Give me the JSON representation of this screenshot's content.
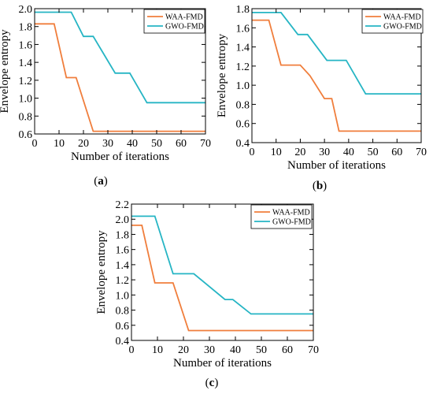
{
  "chart_data": [
    {
      "type": "line",
      "panel": "(a)",
      "panel_letter": "a",
      "xlabel": "Number of iterations",
      "ylabel": "Envelope entropy",
      "xlim": [
        0,
        70
      ],
      "ylim": [
        0.6,
        2.0
      ],
      "xticks": [
        0,
        10,
        20,
        30,
        40,
        50,
        60,
        70
      ],
      "yticks": [
        0.6,
        0.8,
        1.0,
        1.2,
        1.4,
        1.6,
        1.8,
        2.0
      ],
      "grid": false,
      "legend_position": "top-right",
      "series": [
        {
          "name": "WAA-FMD",
          "color": "#F07E3C",
          "x": [
            0,
            8,
            13,
            17,
            24,
            70
          ],
          "y": [
            1.83,
            1.83,
            1.23,
            1.23,
            0.63,
            0.63
          ]
        },
        {
          "name": "GWO-FMD",
          "color": "#26B5C4",
          "x": [
            0,
            15,
            20,
            24,
            33,
            39,
            46,
            70
          ],
          "y": [
            1.96,
            1.96,
            1.69,
            1.69,
            1.28,
            1.28,
            0.95,
            0.95
          ]
        }
      ]
    },
    {
      "type": "line",
      "panel": "(b)",
      "panel_letter": "b",
      "xlabel": "Number of iterations",
      "ylabel": "Envelope entropy",
      "xlim": [
        0,
        70
      ],
      "ylim": [
        0.4,
        1.8
      ],
      "xticks": [
        0,
        10,
        20,
        30,
        40,
        50,
        60,
        70
      ],
      "yticks": [
        0.4,
        0.6,
        0.8,
        1.0,
        1.2,
        1.4,
        1.6,
        1.8
      ],
      "grid": false,
      "legend_position": "top-right",
      "series": [
        {
          "name": "WAA-FMD",
          "color": "#F07E3C",
          "x": [
            0,
            7,
            12,
            20,
            24,
            30,
            33,
            36,
            70
          ],
          "y": [
            1.68,
            1.68,
            1.21,
            1.21,
            1.1,
            0.86,
            0.86,
            0.52,
            0.52
          ]
        },
        {
          "name": "GWO-FMD",
          "color": "#26B5C4",
          "x": [
            0,
            12,
            19,
            23,
            31,
            39,
            47,
            70
          ],
          "y": [
            1.76,
            1.76,
            1.53,
            1.53,
            1.26,
            1.26,
            0.91,
            0.91
          ]
        }
      ]
    },
    {
      "type": "line",
      "panel": "(c)",
      "panel_letter": "c",
      "xlabel": "Number of iterations",
      "ylabel": "Envelope entropy",
      "xlim": [
        0,
        70
      ],
      "ylim": [
        0.4,
        2.2
      ],
      "xticks": [
        0,
        10,
        20,
        30,
        40,
        50,
        60,
        70
      ],
      "yticks": [
        0.4,
        0.6,
        0.8,
        1.0,
        1.2,
        1.4,
        1.6,
        1.8,
        2.0,
        2.2
      ],
      "grid": false,
      "legend_position": "top-right",
      "series": [
        {
          "name": "WAA-FMD",
          "color": "#F07E3C",
          "x": [
            0,
            4,
            9,
            16,
            22,
            70
          ],
          "y": [
            1.92,
            1.92,
            1.16,
            1.16,
            0.53,
            0.53
          ]
        },
        {
          "name": "GWO-FMD",
          "color": "#26B5C4",
          "x": [
            0,
            9,
            16,
            24,
            36,
            39,
            46,
            70
          ],
          "y": [
            2.04,
            2.04,
            1.28,
            1.28,
            0.94,
            0.94,
            0.75,
            0.75
          ]
        }
      ]
    }
  ]
}
